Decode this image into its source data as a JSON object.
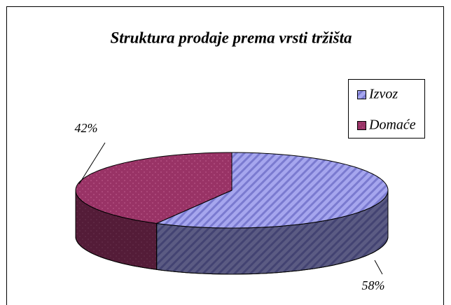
{
  "chart_data": {
    "type": "pie3d",
    "title": "Struktura prodaje prema vrsti tržišta",
    "categories": [
      "Izvoz",
      "Domaće"
    ],
    "values": [
      58,
      42
    ],
    "value_labels": [
      "58%",
      "42%"
    ],
    "colors": [
      "#a6a6ee",
      "#993366"
    ],
    "legend": "right"
  }
}
